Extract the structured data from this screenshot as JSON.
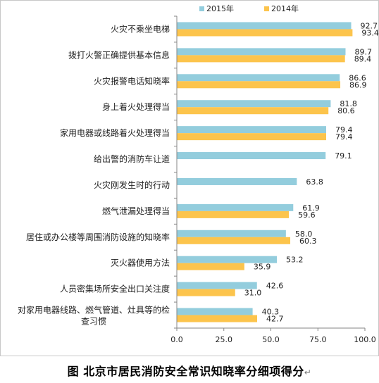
{
  "chart_data": {
    "type": "bar",
    "orientation": "horizontal",
    "categories": [
      "火灾不乘坐电梯",
      "拨打火警正确提供基本信息",
      "火灾报警电话知晓率",
      "身上着火处理得当",
      "家用电器或线路着火处理得当",
      "给出警的消防车让道",
      "火灾刚发生时的行动",
      "燃气泄漏处理得当",
      "居住或办公楼等周围消防设施的知晓率",
      "灭火器使用方法",
      "人员密集场所安全出口关注度",
      "对家用电器线路、燃气管道、灶具等的检查习惯"
    ],
    "series": [
      {
        "name": "2015年",
        "color": "#93cddd",
        "values": [
          92.7,
          89.7,
          86.6,
          81.8,
          79.4,
          79.1,
          63.8,
          61.9,
          58.0,
          53.2,
          42.6,
          40.3
        ],
        "labels": [
          "92.7",
          "89.7",
          "86.6",
          "81.8",
          "79.4",
          "79.1",
          "63.8",
          "61.9",
          "58.0",
          "53.2",
          "42.6",
          "40.3"
        ]
      },
      {
        "name": "2014年",
        "color": "#fcc44c",
        "values": [
          93.4,
          89.4,
          86.9,
          80.6,
          79.4,
          null,
          null,
          59.6,
          60.3,
          35.9,
          31.0,
          42.7
        ],
        "labels": [
          "93.4",
          "89.4",
          "86.9",
          "80.6",
          "79.4",
          null,
          null,
          "59.6",
          "60.3",
          "35.9",
          "31.0",
          "42.7"
        ]
      }
    ],
    "xlim": [
      0,
      100
    ],
    "xticks": [
      "0.0",
      "25.0",
      "50.0",
      "75.0",
      "100.0"
    ],
    "legend": "top",
    "grid": false
  },
  "caption": "图  北京市居民消防安全常识知晓率分细项得分",
  "caption_mark": "↵"
}
